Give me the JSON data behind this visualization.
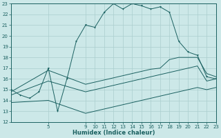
{
  "xlabel": "Humidex (Indice chaleur)",
  "background_color": "#cce8e8",
  "grid_color": "#aacece",
  "line_color": "#1a6060",
  "ylim": [
    12,
    23
  ],
  "xlim": [
    1,
    23
  ],
  "yticks": [
    12,
    13,
    14,
    15,
    16,
    17,
    18,
    19,
    20,
    21,
    22,
    23
  ],
  "xtick_positions": [
    5,
    9,
    10,
    11,
    12,
    13,
    14,
    15,
    16,
    17,
    18,
    19,
    20,
    21,
    22,
    23
  ],
  "xtick_labels": [
    "5",
    "9",
    "10",
    "11",
    "12",
    "13",
    "14",
    "15",
    "16",
    "17",
    "18",
    "19",
    "20",
    "21",
    "22",
    "23"
  ],
  "series_main_x": [
    1,
    2,
    3,
    4,
    5,
    6,
    7,
    8,
    9,
    10,
    11,
    12,
    13,
    14,
    15,
    16,
    17,
    18,
    19,
    20,
    21,
    22,
    23
  ],
  "series_main_y": [
    15.0,
    14.5,
    14.2,
    14.8,
    17.0,
    13.0,
    16.0,
    19.5,
    21.0,
    20.8,
    22.2,
    23.0,
    22.5,
    23.0,
    22.8,
    22.5,
    22.7,
    22.2,
    19.5,
    18.5,
    18.2,
    16.2,
    16.0
  ],
  "series_upper_x": [
    1,
    5,
    9,
    10,
    11,
    12,
    13,
    14,
    15,
    16,
    17,
    18,
    19,
    20,
    21,
    22,
    23
  ],
  "series_upper_y": [
    14.8,
    16.8,
    15.5,
    15.7,
    15.9,
    16.1,
    16.3,
    16.5,
    16.7,
    16.9,
    17.0,
    17.8,
    18.0,
    18.0,
    18.0,
    16.5,
    16.2
  ],
  "series_mid_x": [
    1,
    5,
    9,
    10,
    11,
    12,
    13,
    14,
    15,
    16,
    17,
    18,
    19,
    20,
    21,
    22,
    23
  ],
  "series_mid_y": [
    14.5,
    15.8,
    14.8,
    15.0,
    15.2,
    15.4,
    15.6,
    15.8,
    16.0,
    16.2,
    16.4,
    16.6,
    16.8,
    17.0,
    17.2,
    15.8,
    16.0
  ],
  "series_lower_x": [
    1,
    5,
    9,
    10,
    11,
    12,
    13,
    14,
    15,
    16,
    17,
    18,
    19,
    20,
    21,
    22,
    23
  ],
  "series_lower_y": [
    13.8,
    14.0,
    12.8,
    13.0,
    13.2,
    13.4,
    13.6,
    13.8,
    14.0,
    14.2,
    14.4,
    14.6,
    14.8,
    15.0,
    15.2,
    15.0,
    15.2
  ]
}
